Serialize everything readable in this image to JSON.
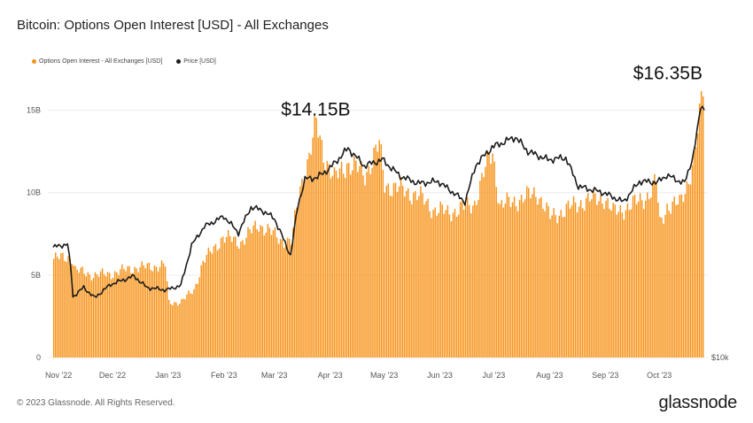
{
  "title": "Bitcoin: Options Open Interest [USD] - All Exchanges",
  "legend": {
    "oi_label": "Options Open Interest - All Exchanges [USD]",
    "price_label": "Price [USD]"
  },
  "colors": {
    "bars": "#f7931a",
    "price": "#1b1b1b",
    "axis": "#777777"
  },
  "footer": {
    "copyright": "© 2023 Glassnode. All Rights Reserved.",
    "brand": "glassnode"
  },
  "chart_data": {
    "type": "bar",
    "title": "Bitcoin: Options Open Interest [USD] - All Exchanges",
    "y_ticks": [
      "0",
      "5B",
      "10B",
      "15B"
    ],
    "y_tick_values": [
      0,
      5,
      10,
      15
    ],
    "ylim": [
      0,
      17.5
    ],
    "right_axis_label": "$10k",
    "x_tick_labels": [
      "Nov '22",
      "Dec '22",
      "Jan '23",
      "Feb '23",
      "Mar '23",
      "Apr '23",
      "May '23",
      "Jun '23",
      "Jul '23",
      "Aug '23",
      "Sep '23",
      "Oct '23"
    ],
    "annotations": [
      {
        "text": "$14.15B",
        "date": "2023-03-24",
        "value": 14.15
      },
      {
        "text": "$16.35B",
        "date": "2023-10-25",
        "value": 16.35
      }
    ],
    "series": [
      {
        "name": "Options Open Interest - All Exchanges [USD]",
        "kind": "bar",
        "unit": "USD billions",
        "start_date": "2022-10-29",
        "step_days": 1,
        "anchors": [
          [
            "2022-10-29",
            6.0
          ],
          [
            "2022-11-08",
            6.1
          ],
          [
            "2022-11-10",
            5.3
          ],
          [
            "2022-11-20",
            5.0
          ],
          [
            "2022-12-01",
            5.1
          ],
          [
            "2022-12-10",
            5.4
          ],
          [
            "2022-12-20",
            5.5
          ],
          [
            "2022-12-30",
            5.6
          ],
          [
            "2023-01-01",
            3.3
          ],
          [
            "2023-01-08",
            3.4
          ],
          [
            "2023-01-15",
            4.1
          ],
          [
            "2023-01-20",
            5.8
          ],
          [
            "2023-01-31",
            7.3
          ],
          [
            "2023-02-10",
            7.0
          ],
          [
            "2023-02-20",
            8.1
          ],
          [
            "2023-03-05",
            7.1
          ],
          [
            "2023-03-10",
            7.0
          ],
          [
            "2023-03-15",
            10.3
          ],
          [
            "2023-03-20",
            12.2
          ],
          [
            "2023-03-24",
            14.15
          ],
          [
            "2023-03-28",
            12.4
          ],
          [
            "2023-04-03",
            10.8
          ],
          [
            "2023-04-10",
            11.8
          ],
          [
            "2023-04-15",
            11.5
          ],
          [
            "2023-04-20",
            11.1
          ],
          [
            "2023-04-28",
            12.9
          ],
          [
            "2023-05-01",
            10.5
          ],
          [
            "2023-05-10",
            10.2
          ],
          [
            "2023-05-20",
            9.8
          ],
          [
            "2023-05-28",
            9.0
          ],
          [
            "2023-06-05",
            8.8
          ],
          [
            "2023-06-15",
            9.1
          ],
          [
            "2023-06-20",
            9.4
          ],
          [
            "2023-06-28",
            12.1
          ],
          [
            "2023-06-30",
            12.5
          ],
          [
            "2023-07-04",
            9.2
          ],
          [
            "2023-07-15",
            9.6
          ],
          [
            "2023-07-25",
            10.0
          ],
          [
            "2023-08-01",
            8.5
          ],
          [
            "2023-08-10",
            9.0
          ],
          [
            "2023-08-20",
            9.5
          ],
          [
            "2023-08-31",
            9.7
          ],
          [
            "2023-09-05",
            8.8
          ],
          [
            "2023-09-15",
            9.2
          ],
          [
            "2023-09-25",
            9.9
          ],
          [
            "2023-09-29",
            10.7
          ],
          [
            "2023-10-01",
            8.1
          ],
          [
            "2023-10-05",
            9.2
          ],
          [
            "2023-10-12",
            9.3
          ],
          [
            "2023-10-16",
            10.5
          ],
          [
            "2023-10-20",
            12.0
          ],
          [
            "2023-10-23",
            14.5
          ],
          [
            "2023-10-25",
            16.35
          ]
        ]
      },
      {
        "name": "Price [USD]",
        "kind": "line",
        "unit": "USD",
        "anchors": [
          [
            "2022-10-29",
            20700
          ],
          [
            "2022-11-03",
            20900
          ],
          [
            "2022-11-06",
            21000
          ],
          [
            "2022-11-08",
            18400
          ],
          [
            "2022-11-09",
            15900
          ],
          [
            "2022-11-15",
            16800
          ],
          [
            "2022-11-21",
            15800
          ],
          [
            "2022-11-30",
            17100
          ],
          [
            "2022-12-13",
            17900
          ],
          [
            "2022-12-20",
            16800
          ],
          [
            "2022-12-31",
            16550
          ],
          [
            "2023-01-08",
            17000
          ],
          [
            "2023-01-14",
            20900
          ],
          [
            "2023-01-21",
            22700
          ],
          [
            "2023-02-01",
            23700
          ],
          [
            "2023-02-09",
            22100
          ],
          [
            "2023-02-16",
            24600
          ],
          [
            "2023-02-22",
            24300
          ],
          [
            "2023-03-01",
            23500
          ],
          [
            "2023-03-10",
            19900
          ],
          [
            "2023-03-14",
            24700
          ],
          [
            "2023-03-18",
            27300
          ],
          [
            "2023-03-25",
            27500
          ],
          [
            "2023-04-01",
            28400
          ],
          [
            "2023-04-11",
            30300
          ],
          [
            "2023-04-20",
            28600
          ],
          [
            "2023-04-30",
            29200
          ],
          [
            "2023-05-10",
            27600
          ],
          [
            "2023-05-20",
            26900
          ],
          [
            "2023-05-31",
            27100
          ],
          [
            "2023-06-10",
            25800
          ],
          [
            "2023-06-15",
            25100
          ],
          [
            "2023-06-21",
            28700
          ],
          [
            "2023-06-30",
            30400
          ],
          [
            "2023-07-13",
            31400
          ],
          [
            "2023-07-20",
            30000
          ],
          [
            "2023-07-31",
            29200
          ],
          [
            "2023-08-10",
            29400
          ],
          [
            "2023-08-17",
            26600
          ],
          [
            "2023-08-31",
            26000
          ],
          [
            "2023-09-11",
            25100
          ],
          [
            "2023-09-20",
            27100
          ],
          [
            "2023-09-30",
            27000
          ],
          [
            "2023-10-05",
            27700
          ],
          [
            "2023-10-15",
            26900
          ],
          [
            "2023-10-20",
            29700
          ],
          [
            "2023-10-23",
            33000
          ],
          [
            "2023-10-24",
            34500
          ],
          [
            "2023-10-26",
            34200
          ]
        ]
      }
    ]
  }
}
